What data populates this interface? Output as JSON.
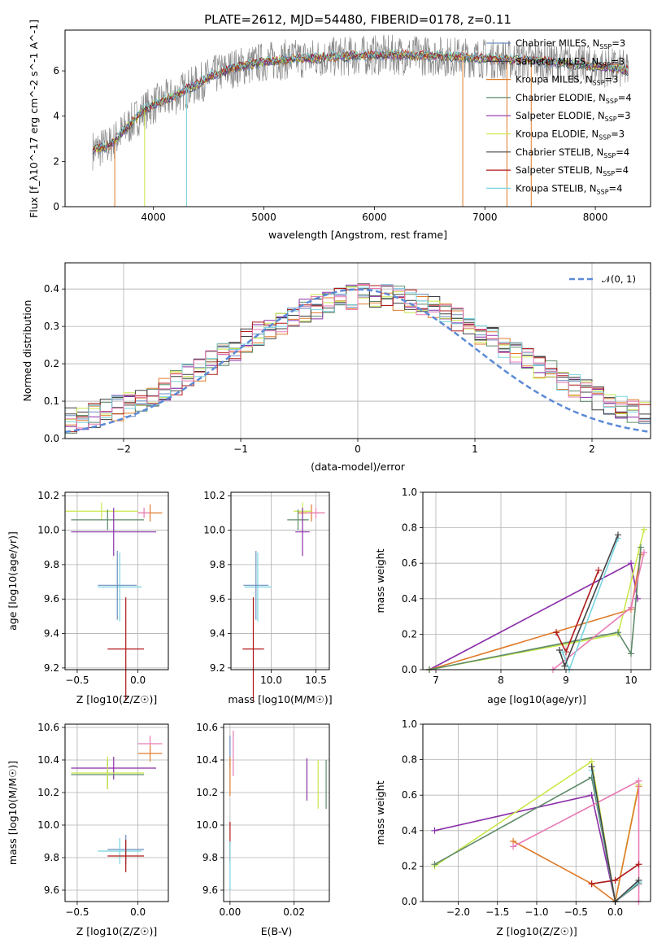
{
  "title": "PLATE=2612, MJD=54480, FIBERID=0178, z=0.11",
  "colors": {
    "chabrier_miles": "#6c8ebf",
    "salpeter_miles": "#3b3b3b",
    "kroupa_miles": "#e07b2a",
    "chabrier_elodie": "#5f8a6a",
    "salpeter_elodie": "#8b2fa8",
    "kroupa_elodie": "#c9e84a",
    "chabrier_stelib": "#444444",
    "salpeter_stelib": "#b01818",
    "kroupa_stelib": "#78d4e0",
    "data": "#8a8a8a",
    "pink": "#e87ab4",
    "gaussian": "#5b8ad6"
  },
  "chart_data": [
    {
      "id": "spectrum",
      "type": "line",
      "xlabel": "wavelength [Angstrom, rest frame]",
      "ylabel": "Flux [f_λ10^-17 erg cm^-2 s^-1 A^-1]",
      "xlim": [
        3200,
        8500
      ],
      "ylim": [
        0,
        7.8
      ],
      "xticks": [
        "4000",
        "5000",
        "6000",
        "7000",
        "8000"
      ],
      "yticks": [
        "0",
        "2",
        "4",
        "6"
      ],
      "legend_position": "upper right",
      "legend": [
        {
          "label": "Chabrier MILES, N",
          "sub": "SSP",
          "tail": "=3",
          "color": "#6c8ebf"
        },
        {
          "label": "Salpeter MILES, N",
          "sub": "SSP",
          "tail": "=3",
          "color": "#3b3b3b"
        },
        {
          "label": "Kroupa MILES, N",
          "sub": "SSP",
          "tail": "=3",
          "color": "#e07b2a"
        },
        {
          "label": "Chabrier ELODIE, N",
          "sub": "SSP",
          "tail": "=4",
          "color": "#5f8a6a"
        },
        {
          "label": "Salpeter ELODIE, N",
          "sub": "SSP",
          "tail": "=3",
          "color": "#8b2fa8"
        },
        {
          "label": "Kroupa ELODIE, N",
          "sub": "SSP",
          "tail": "=3",
          "color": "#c9e84a"
        },
        {
          "label": "Chabrier STELIB, N",
          "sub": "SSP",
          "tail": "=4",
          "color": "#444444"
        },
        {
          "label": "Salpeter STELIB, N",
          "sub": "SSP",
          "tail": "=4",
          "color": "#b01818"
        },
        {
          "label": "Kroupa STELIB, N",
          "sub": "SSP",
          "tail": "=4",
          "color": "#78d4e0"
        }
      ],
      "continuum": {
        "x": [
          3450,
          3600,
          3700,
          3800,
          3900,
          4000,
          4100,
          4200,
          4300,
          4400,
          4500,
          4600,
          4700,
          4800,
          4900,
          5000,
          5200,
          5400,
          5600,
          5800,
          6000,
          6200,
          6400,
          6600,
          6800,
          7000,
          7200,
          7400,
          7600,
          7800,
          8000,
          8200,
          8300
        ],
        "y": [
          2.5,
          2.7,
          3.2,
          3.7,
          4.2,
          4.5,
          4.7,
          4.9,
          5.2,
          5.4,
          5.7,
          5.9,
          6.1,
          6.2,
          6.3,
          6.4,
          6.5,
          6.55,
          6.6,
          6.65,
          6.7,
          6.7,
          6.68,
          6.65,
          6.6,
          6.55,
          6.5,
          6.45,
          6.4,
          6.3,
          6.2,
          6.1,
          6.0
        ]
      }
    },
    {
      "id": "residuals",
      "type": "line",
      "xlabel": "(data-model)/error",
      "ylabel": "Normed distribution",
      "xlim": [
        -2.5,
        2.5
      ],
      "ylim": [
        0,
        0.47
      ],
      "xticks": [
        "−2",
        "−1",
        "0",
        "1",
        "2"
      ],
      "yticks": [
        "0.0",
        "0.1",
        "0.2",
        "0.3",
        "0.4"
      ],
      "gaussian_label": "𝒩(0, 1)",
      "gaussian": {
        "mu": 0,
        "sigma": 1
      }
    },
    {
      "id": "z_age",
      "type": "scatter",
      "xlabel": "Z [log10(Z/Z☉)]",
      "ylabel": "age  [log10(age/yr)]",
      "xlim": [
        -0.6,
        0.25
      ],
      "ylim": [
        9.19,
        10.22
      ],
      "xticks": [
        "−0.5",
        "0.0"
      ],
      "yticks": [
        "9.2",
        "9.4",
        "9.6",
        "9.8",
        "10.0",
        "10.2"
      ],
      "points": [
        {
          "x": 0.1,
          "y": 10.1,
          "xerr": 0.1,
          "yerr": 0.05,
          "c": "#e07b2a"
        },
        {
          "x": -0.3,
          "y": 10.11,
          "xerr": 0.3,
          "yerr": 0.05,
          "c": "#c9e84a"
        },
        {
          "x": -0.25,
          "y": 10.06,
          "xerr": 0.3,
          "yerr": 0.06,
          "c": "#5f8a6a"
        },
        {
          "x": -0.2,
          "y": 9.99,
          "xerr": 0.35,
          "yerr": 0.14,
          "c": "#8b2fa8"
        },
        {
          "x": 0.05,
          "y": 10.1,
          "xerr": 0.05,
          "yerr": 0.03,
          "c": "#e87ab4"
        },
        {
          "x": -0.15,
          "y": 9.67,
          "xerr": 0.18,
          "yerr": 0.2,
          "c": "#78d4e0"
        },
        {
          "x": -0.17,
          "y": 9.68,
          "xerr": 0.16,
          "yerr": 0.2,
          "c": "#6c8ebf"
        },
        {
          "x": -0.1,
          "y": 9.31,
          "xerr": 0.15,
          "yerr": 0.3,
          "c": "#b01818"
        }
      ]
    },
    {
      "id": "mass_age",
      "type": "scatter",
      "xlabel": "mass [log10(M/M☉)]",
      "ylabel": "",
      "xlim": [
        9.55,
        10.65
      ],
      "ylim": [
        9.19,
        10.22
      ],
      "xticks": [
        "10.0",
        "10.5"
      ],
      "yticks": [
        "9.2",
        "9.4",
        "9.6",
        "9.8",
        "10.0",
        "10.2"
      ],
      "points": [
        {
          "x": 10.45,
          "y": 10.1,
          "xerr": 0.15,
          "yerr": 0.05,
          "c": "#e07b2a"
        },
        {
          "x": 10.35,
          "y": 10.11,
          "xerr": 0.1,
          "yerr": 0.05,
          "c": "#c9e84a"
        },
        {
          "x": 10.3,
          "y": 10.06,
          "xerr": 0.12,
          "yerr": 0.06,
          "c": "#5f8a6a"
        },
        {
          "x": 10.35,
          "y": 9.99,
          "xerr": 0.08,
          "yerr": 0.14,
          "c": "#8b2fa8"
        },
        {
          "x": 10.5,
          "y": 10.1,
          "xerr": 0.1,
          "yerr": 0.03,
          "c": "#e87ab4"
        },
        {
          "x": 9.85,
          "y": 9.67,
          "xerr": 0.15,
          "yerr": 0.2,
          "c": "#78d4e0"
        },
        {
          "x": 9.83,
          "y": 9.68,
          "xerr": 0.14,
          "yerr": 0.2,
          "c": "#6c8ebf"
        },
        {
          "x": 9.8,
          "y": 9.31,
          "xerr": 0.12,
          "yerr": 0.3,
          "c": "#b01818"
        }
      ]
    },
    {
      "id": "age_weight",
      "type": "line",
      "xlabel": "age  [log10(age/yr)]",
      "ylabel": "mass weight",
      "xlim": [
        6.8,
        10.3
      ],
      "ylim": [
        0,
        1.0
      ],
      "xticks": [
        "7",
        "8",
        "9",
        "10"
      ],
      "yticks": [
        "0.0",
        "0.2",
        "0.4",
        "0.6",
        "0.8",
        "1.0"
      ],
      "series": [
        {
          "c": "#8b2fa8",
          "x": [
            6.9,
            10.0,
            10.1
          ],
          "y": [
            0.0,
            0.6,
            0.4
          ]
        },
        {
          "c": "#e07b2a",
          "x": [
            6.9,
            10.0,
            10.15
          ],
          "y": [
            0.0,
            0.34,
            0.65
          ]
        },
        {
          "c": "#c9e84a",
          "x": [
            6.9,
            9.8,
            10.2
          ],
          "y": [
            0.0,
            0.2,
            0.79
          ]
        },
        {
          "c": "#5f8a6a",
          "x": [
            6.9,
            9.8,
            10.0,
            10.15
          ],
          "y": [
            0.0,
            0.21,
            0.09,
            0.69
          ]
        },
        {
          "c": "#e87ab4",
          "x": [
            8.8,
            10.0,
            10.2
          ],
          "y": [
            0.0,
            0.35,
            0.66
          ]
        },
        {
          "c": "#b01818",
          "x": [
            8.85,
            9.0,
            9.5
          ],
          "y": [
            0.21,
            0.1,
            0.56
          ]
        },
        {
          "c": "#78d4e0",
          "x": [
            8.95,
            9.05,
            9.8
          ],
          "y": [
            0.1,
            0.0,
            0.74
          ]
        },
        {
          "c": "#444444",
          "x": [
            8.9,
            8.98,
            9.8
          ],
          "y": [
            0.11,
            0.02,
            0.76
          ]
        }
      ]
    },
    {
      "id": "z_mass",
      "type": "scatter",
      "xlabel": "Z [log10(Z/Z☉)]",
      "ylabel": "mass [log10(M/M☉)]",
      "xlim": [
        -0.6,
        0.25
      ],
      "ylim": [
        9.53,
        10.62
      ],
      "xticks": [
        "−0.5",
        "0.0"
      ],
      "yticks": [
        "9.6",
        "9.8",
        "10.0",
        "10.2",
        "10.4",
        "10.6"
      ],
      "points": [
        {
          "x": 0.1,
          "y": 10.5,
          "xerr": 0.1,
          "yerr": 0.05,
          "c": "#e87ab4"
        },
        {
          "x": 0.1,
          "y": 10.44,
          "xerr": 0.1,
          "yerr": 0.05,
          "c": "#e07b2a"
        },
        {
          "x": -0.2,
          "y": 10.35,
          "xerr": 0.35,
          "yerr": 0.07,
          "c": "#8b2fa8"
        },
        {
          "x": -0.25,
          "y": 10.31,
          "xerr": 0.3,
          "yerr": 0.09,
          "c": "#5f8a6a"
        },
        {
          "x": -0.25,
          "y": 10.32,
          "xerr": 0.3,
          "yerr": 0.1,
          "c": "#c9e84a"
        },
        {
          "x": -0.1,
          "y": 9.85,
          "xerr": 0.15,
          "yerr": 0.09,
          "c": "#6c8ebf"
        },
        {
          "x": -0.15,
          "y": 9.84,
          "xerr": 0.18,
          "yerr": 0.08,
          "c": "#78d4e0"
        },
        {
          "x": -0.1,
          "y": 9.81,
          "xerr": 0.15,
          "yerr": 0.1,
          "c": "#b01818"
        }
      ]
    },
    {
      "id": "ebv_mass",
      "type": "scatter",
      "xlabel": "E(B-V)",
      "ylabel": "",
      "xlim": [
        -0.002,
        0.031
      ],
      "ylim": [
        9.53,
        10.62
      ],
      "xticks": [
        "0.00",
        "0.02"
      ],
      "yticks": [
        "9.6",
        "9.8",
        "10.0",
        "10.2",
        "10.4",
        "10.6"
      ],
      "points": [
        {
          "x": 0.0,
          "y": 10.45,
          "xerr": 0,
          "yerr": 0.1,
          "c": "#6c8ebf"
        },
        {
          "x": 0.0,
          "y": 10.3,
          "xerr": 0,
          "yerr": 0.12,
          "c": "#e07b2a"
        },
        {
          "x": 0.0,
          "y": 9.9,
          "xerr": 0,
          "yerr": 0.12,
          "c": "#b01818"
        },
        {
          "x": 0.0,
          "y": 9.75,
          "xerr": 0,
          "yerr": 0.15,
          "c": "#78d4e0"
        },
        {
          "x": 0.001,
          "y": 10.44,
          "xerr": 0,
          "yerr": 0.14,
          "c": "#e87ab4"
        },
        {
          "x": 0.024,
          "y": 10.28,
          "xerr": 0,
          "yerr": 0.13,
          "c": "#8b2fa8"
        },
        {
          "x": 0.0275,
          "y": 10.25,
          "xerr": 0,
          "yerr": 0.15,
          "c": "#c9e84a"
        },
        {
          "x": 0.03,
          "y": 10.25,
          "xerr": 0,
          "yerr": 0.15,
          "c": "#5f8a6a"
        }
      ]
    },
    {
      "id": "z_weight",
      "type": "line",
      "xlabel": "Z [log10(Z/Z☉)]",
      "ylabel": "mass weight",
      "xlim": [
        -2.45,
        0.45
      ],
      "ylim": [
        0,
        1.0
      ],
      "xticks": [
        "−2.0",
        "−1.5",
        "−1.0",
        "−0.5",
        "0.0"
      ],
      "yticks": [
        "0.0",
        "0.2",
        "0.4",
        "0.6",
        "0.8",
        "1.0"
      ],
      "series": [
        {
          "c": "#8b2fa8",
          "x": [
            -2.3,
            -0.3,
            0.0,
            0.3
          ],
          "y": [
            0.4,
            0.6,
            0.0,
            0.1
          ]
        },
        {
          "c": "#c9e84a",
          "x": [
            -2.3,
            -0.3,
            0.0,
            0.3
          ],
          "y": [
            0.2,
            0.79,
            0.0,
            0.66
          ]
        },
        {
          "c": "#5f8a6a",
          "x": [
            -2.3,
            -0.3,
            0.0,
            0.3
          ],
          "y": [
            0.21,
            0.7,
            0.0,
            0.1
          ]
        },
        {
          "c": "#e07b2a",
          "x": [
            -1.3,
            -0.3,
            0.0,
            0.3
          ],
          "y": [
            0.34,
            0.1,
            0.0,
            0.65
          ]
        },
        {
          "c": "#e87ab4",
          "x": [
            -1.3,
            0.3,
            0.3
          ],
          "y": [
            0.31,
            0.68,
            0.0
          ]
        },
        {
          "c": "#b01818",
          "x": [
            -0.3,
            0.0,
            0.3
          ],
          "y": [
            0.1,
            0.12,
            0.21
          ]
        },
        {
          "c": "#78d4e0",
          "x": [
            -0.3,
            0.0,
            0.3
          ],
          "y": [
            0.74,
            0.0,
            0.11
          ]
        },
        {
          "c": "#444444",
          "x": [
            -0.3,
            0.0,
            0.3
          ],
          "y": [
            0.76,
            0.0,
            0.12
          ]
        }
      ]
    }
  ]
}
